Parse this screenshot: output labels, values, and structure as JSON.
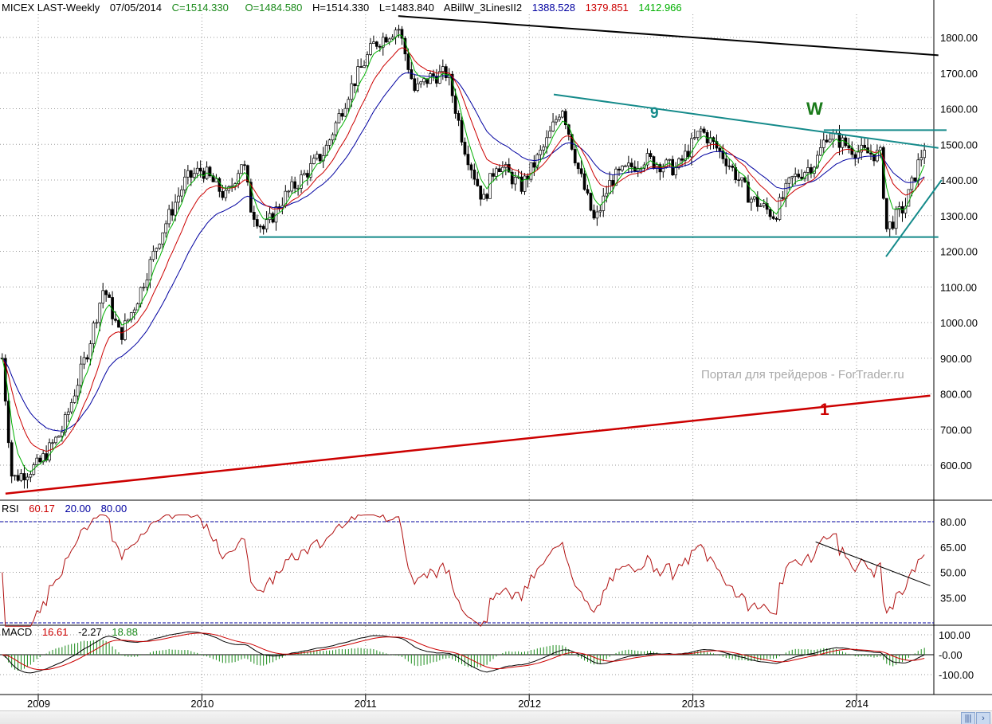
{
  "header": {
    "symbol": "MICEX LAST-Weekly",
    "date": "07/05/2014",
    "close": "C=1514.330",
    "open": "O=1484.580",
    "high": "H=1514.330",
    "low": "L=1483.840",
    "indicator": "ABillW_3LinesII2",
    "line_blue": "1388.528",
    "line_red": "1379.851",
    "line_green": "1412.966"
  },
  "rsi_panel": {
    "label": "RSI",
    "value": "60.17",
    "low": "20.00",
    "high": "80.00"
  },
  "macd_panel": {
    "label": "MACD",
    "macd": "16.61",
    "hist": "-2.27",
    "signal": "18.88"
  },
  "watermark": "Портал для трейдеров - ForTrader.ru",
  "annotations": {
    "nine": "9",
    "w": "W",
    "one": "1"
  },
  "colors": {
    "blue": "#0000a0",
    "red": "#cc0000",
    "green": "#00b000",
    "teal": "#148a8a",
    "rsi": "#b01010"
  },
  "chart_data": {
    "type": "candlestick",
    "title": "MICEX LAST-Weekly",
    "x_ticks": [
      "2009",
      "2010",
      "2011",
      "2012",
      "2013",
      "2014"
    ],
    "y_ticks": [
      "1800.00",
      "1700.00",
      "1600.00",
      "1500.00",
      "1400.00",
      "1300.00",
      "1200.00",
      "1100.00",
      "1000.00",
      "900.00",
      "800.00",
      "700.00",
      "600.00"
    ],
    "ylim": [
      520,
      1880
    ],
    "xlim": [
      2008.77,
      2014.5
    ],
    "close_keypoints": [
      [
        2008.78,
        900
      ],
      [
        2008.84,
        560
      ],
      [
        2009.0,
        600
      ],
      [
        2009.15,
        700
      ],
      [
        2009.3,
        920
      ],
      [
        2009.4,
        1100
      ],
      [
        2009.5,
        960
      ],
      [
        2009.6,
        1060
      ],
      [
        2009.75,
        1250
      ],
      [
        2009.9,
        1400
      ],
      [
        2010.0,
        1430
      ],
      [
        2010.15,
        1350
      ],
      [
        2010.25,
        1460
      ],
      [
        2010.3,
        1320
      ],
      [
        2010.38,
        1260
      ],
      [
        2010.5,
        1350
      ],
      [
        2010.6,
        1400
      ],
      [
        2010.75,
        1480
      ],
      [
        2010.9,
        1650
      ],
      [
        2011.05,
        1780
      ],
      [
        2011.2,
        1830
      ],
      [
        2011.3,
        1650
      ],
      [
        2011.4,
        1690
      ],
      [
        2011.5,
        1700
      ],
      [
        2011.6,
        1500
      ],
      [
        2011.72,
        1340
      ],
      [
        2011.8,
        1450
      ],
      [
        2011.95,
        1380
      ],
      [
        2012.1,
        1500
      ],
      [
        2012.2,
        1610
      ],
      [
        2012.3,
        1430
      ],
      [
        2012.4,
        1280
      ],
      [
        2012.5,
        1400
      ],
      [
        2012.7,
        1460
      ],
      [
        2012.9,
        1430
      ],
      [
        2013.05,
        1540
      ],
      [
        2013.2,
        1460
      ],
      [
        2013.35,
        1350
      ],
      [
        2013.5,
        1300
      ],
      [
        2013.6,
        1400
      ],
      [
        2013.75,
        1450
      ],
      [
        2013.82,
        1530
      ],
      [
        2014.0,
        1480
      ],
      [
        2014.15,
        1470
      ],
      [
        2014.18,
        1260
      ],
      [
        2014.3,
        1330
      ],
      [
        2014.38,
        1450
      ],
      [
        2014.43,
        1514
      ]
    ],
    "moving_averages": [
      {
        "name": "blue",
        "color": "#0000a0",
        "period": 26
      },
      {
        "name": "red",
        "color": "#cc0000",
        "period": 13
      },
      {
        "name": "green",
        "color": "#00b000",
        "period": 5
      }
    ],
    "trendlines": [
      {
        "name": "top-resistance",
        "color": "#000000",
        "points": [
          [
            2011.2,
            1860
          ],
          [
            2014.5,
            1750
          ]
        ]
      },
      {
        "name": "wave-9-line",
        "color": "#148a8a",
        "points": [
          [
            2012.15,
            1640
          ],
          [
            2014.5,
            1490
          ]
        ]
      },
      {
        "name": "support-1240",
        "color": "#148a8a",
        "points": [
          [
            2010.35,
            1240
          ],
          [
            2014.5,
            1240
          ]
        ]
      },
      {
        "name": "resistance-1540",
        "color": "#148a8a",
        "points": [
          [
            2013.8,
            1540
          ],
          [
            2014.55,
            1540
          ]
        ]
      },
      {
        "name": "rising-support",
        "color": "#148a8a",
        "points": [
          [
            2014.18,
            1185
          ],
          [
            2014.52,
            1400
          ]
        ]
      },
      {
        "name": "long-term-1",
        "color": "#cc0000",
        "points": [
          [
            2008.8,
            520
          ],
          [
            2014.45,
            795
          ]
        ]
      }
    ],
    "rsi": {
      "ylim": [
        15,
        85
      ],
      "ticks": [
        "80.00",
        "65.00",
        "50.00",
        "35.00"
      ],
      "levels": [
        20,
        80
      ],
      "trendline": [
        [
          2013.75,
          68
        ],
        [
          2014.45,
          42
        ]
      ]
    },
    "macd": {
      "ticks": [
        "100.00",
        "-0.00",
        "-100.00"
      ],
      "ylim": [
        -160,
        130
      ]
    }
  }
}
